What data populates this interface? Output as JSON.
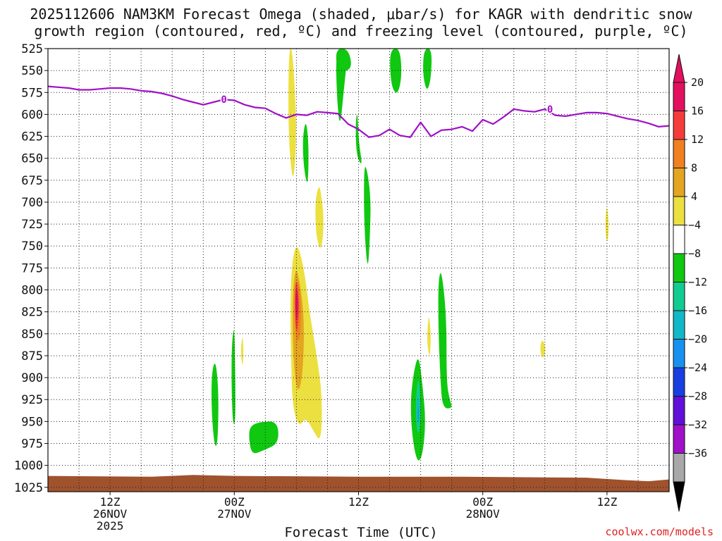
{
  "chart_data": {
    "type": "heatmap",
    "title_line1": "2025112606 NAM3KM Forecast Omega (shaded, μbar/s) for KAGR with dendritic snow",
    "title_line2": "growth region (contoured, red, ºC) and freezing level (contoured, purple, ºC)",
    "xlabel": "Forecast Time (UTC)",
    "x_ticks": [
      {
        "h": 6,
        "lines": [
          "12Z",
          "26NOV",
          "2025"
        ]
      },
      {
        "h": 18,
        "lines": [
          "00Z",
          "27NOV"
        ]
      },
      {
        "h": 30,
        "lines": [
          "12Z"
        ]
      },
      {
        "h": 42,
        "lines": [
          "00Z",
          "28NOV"
        ]
      },
      {
        "h": 54,
        "lines": [
          "12Z"
        ]
      }
    ],
    "xlim": [
      0,
      60
    ],
    "y_ticks": [
      525,
      550,
      575,
      600,
      625,
      650,
      675,
      700,
      725,
      750,
      775,
      800,
      825,
      850,
      875,
      900,
      925,
      950,
      975,
      1000,
      1025
    ],
    "ylim": [
      525,
      1030
    ],
    "grid": true,
    "colorbar": {
      "labels": [
        "20",
        "16",
        "12",
        "8",
        "4",
        "−4",
        "−8",
        "−12",
        "−16",
        "−20",
        "−24",
        "−28",
        "−32",
        "−36"
      ],
      "colors": [
        "#e2105f",
        "#f53c3c",
        "#f08020",
        "#e4a520",
        "#ece040",
        "#ffffff",
        "#10c810",
        "#10cc90",
        "#10b8c8",
        "#1890f0",
        "#1840e0",
        "#6010d8",
        "#a010c8",
        "#a8a8a8"
      ]
    },
    "freezing_level": {
      "label": "0",
      "color": "#a010c8",
      "points": [
        [
          0,
          568
        ],
        [
          1,
          569
        ],
        [
          2,
          570
        ],
        [
          3,
          572
        ],
        [
          4,
          572
        ],
        [
          5,
          571
        ],
        [
          6,
          570
        ],
        [
          7,
          570
        ],
        [
          8,
          571
        ],
        [
          9,
          573
        ],
        [
          10,
          574
        ],
        [
          11,
          576
        ],
        [
          12,
          579
        ],
        [
          13,
          583
        ],
        [
          14,
          586
        ],
        [
          15,
          589
        ],
        [
          16,
          586
        ],
        [
          17,
          583
        ],
        [
          18,
          584
        ],
        [
          19,
          589
        ],
        [
          20,
          592
        ],
        [
          21,
          593
        ],
        [
          22,
          599
        ],
        [
          23,
          604
        ],
        [
          24,
          600
        ],
        [
          25,
          601
        ],
        [
          26,
          597
        ],
        [
          27,
          598
        ],
        [
          28,
          599
        ],
        [
          29,
          611
        ],
        [
          30,
          617
        ],
        [
          31,
          626
        ],
        [
          32,
          624
        ],
        [
          33,
          617
        ],
        [
          34,
          624
        ],
        [
          35,
          626
        ],
        [
          36,
          609
        ],
        [
          37,
          625
        ],
        [
          38,
          618
        ],
        [
          39,
          617
        ],
        [
          40,
          614
        ],
        [
          41,
          619
        ],
        [
          42,
          606
        ],
        [
          43,
          611
        ],
        [
          44,
          603
        ],
        [
          45,
          594
        ],
        [
          46,
          596
        ],
        [
          47,
          597
        ],
        [
          48,
          594
        ],
        [
          49,
          601
        ],
        [
          50,
          602
        ],
        [
          51,
          600
        ],
        [
          52,
          598
        ],
        [
          53,
          598
        ],
        [
          54,
          599
        ],
        [
          55,
          602
        ],
        [
          56,
          605
        ],
        [
          57,
          607
        ],
        [
          58,
          610
        ],
        [
          59,
          614
        ],
        [
          60,
          613
        ]
      ]
    },
    "omega_features": [
      {
        "level": 4,
        "color": "#ece040",
        "pts": [
          [
            23.6,
            525
          ],
          [
            23.9,
            580
          ],
          [
            24.0,
            630
          ],
          [
            23.7,
            682
          ],
          [
            23.3,
            640
          ],
          [
            23.2,
            580
          ],
          [
            23.3,
            525
          ]
        ]
      },
      {
        "level": -4,
        "color": "#10c810",
        "pts": [
          [
            29.0,
            525
          ],
          [
            28.6,
            570
          ],
          [
            28.2,
            618
          ],
          [
            27.9,
            580
          ],
          [
            27.8,
            525
          ]
        ]
      },
      {
        "level": -4,
        "color": "#10c810",
        "pts": [
          [
            27.8,
            525
          ],
          [
            29.0,
            525
          ],
          [
            29.4,
            546
          ],
          [
            28.6,
            552
          ],
          [
            27.9,
            548
          ]
        ]
      },
      {
        "level": -4,
        "color": "#10c810",
        "pts": [
          [
            34.0,
            525
          ],
          [
            34.2,
            555
          ],
          [
            33.8,
            578
          ],
          [
            33.2,
            570
          ],
          [
            33.0,
            540
          ],
          [
            33.2,
            525
          ]
        ]
      },
      {
        "level": -4,
        "color": "#10c810",
        "pts": [
          [
            37.1,
            525
          ],
          [
            37.0,
            560
          ],
          [
            36.6,
            575
          ],
          [
            36.2,
            555
          ],
          [
            36.3,
            525
          ]
        ]
      },
      {
        "level": -4,
        "color": "#10c810",
        "pts": [
          [
            25.0,
            611
          ],
          [
            25.2,
            640
          ],
          [
            25.1,
            685
          ],
          [
            24.7,
            660
          ],
          [
            24.6,
            630
          ],
          [
            24.8,
            611
          ]
        ]
      },
      {
        "level": 4,
        "color": "#ece040",
        "pts": [
          [
            26.3,
            683
          ],
          [
            26.7,
            720
          ],
          [
            26.4,
            758
          ],
          [
            25.9,
            740
          ],
          [
            25.8,
            700
          ],
          [
            26.1,
            683
          ]
        ]
      },
      {
        "level": -4,
        "color": "#10c810",
        "pts": [
          [
            29.9,
            595
          ],
          [
            30.0,
            630
          ],
          [
            30.4,
            660
          ],
          [
            29.8,
            648
          ],
          [
            29.7,
            610
          ]
        ]
      },
      {
        "level": -4,
        "color": "#10c810",
        "pts": [
          [
            30.6,
            650
          ],
          [
            31.2,
            690
          ],
          [
            31.1,
            740
          ],
          [
            30.9,
            780
          ],
          [
            30.6,
            740
          ],
          [
            30.5,
            690
          ]
        ]
      },
      {
        "level": 4,
        "color": "#ece040",
        "pts": [
          [
            24.2,
            750
          ],
          [
            24.8,
            780
          ],
          [
            25.2,
            820
          ],
          [
            25.9,
            870
          ],
          [
            26.5,
            920
          ],
          [
            26.4,
            975
          ],
          [
            25.6,
            960
          ],
          [
            24.9,
            945
          ],
          [
            24.2,
            957
          ],
          [
            23.6,
            930
          ],
          [
            23.5,
            880
          ],
          [
            23.4,
            830
          ],
          [
            23.5,
            780
          ],
          [
            23.8,
            753
          ]
        ]
      },
      {
        "level": 8,
        "color": "#e4a520",
        "pts": [
          [
            24.1,
            775
          ],
          [
            24.8,
            830
          ],
          [
            24.6,
            900
          ],
          [
            24.1,
            920
          ],
          [
            23.7,
            880
          ],
          [
            23.6,
            820
          ],
          [
            23.8,
            782
          ]
        ]
      },
      {
        "level": 12,
        "color": "#f08020",
        "pts": [
          [
            24.1,
            780
          ],
          [
            24.5,
            820
          ],
          [
            24.3,
            860
          ],
          [
            23.9,
            855
          ],
          [
            23.8,
            815
          ]
        ]
      },
      {
        "level": 16,
        "color": "#f53c3c",
        "pts": [
          [
            24.0,
            785
          ],
          [
            24.3,
            815
          ],
          [
            24.1,
            850
          ],
          [
            23.9,
            840
          ],
          [
            23.8,
            808
          ]
        ]
      },
      {
        "level": 20,
        "color": "#e2105f",
        "pts": [
          [
            24.0,
            795
          ],
          [
            24.2,
            815
          ],
          [
            24.05,
            840
          ],
          [
            23.9,
            820
          ]
        ]
      },
      {
        "level": -4,
        "color": "#10c810",
        "pts": [
          [
            16.2,
            878
          ],
          [
            16.5,
            920
          ],
          [
            16.4,
            975
          ],
          [
            16.1,
            980
          ],
          [
            15.8,
            940
          ],
          [
            15.8,
            895
          ]
        ]
      },
      {
        "level": -4,
        "color": "#10c810",
        "pts": [
          [
            18.0,
            835
          ],
          [
            18.1,
            900
          ],
          [
            18.1,
            955
          ],
          [
            17.8,
            950
          ],
          [
            17.7,
            870
          ]
        ]
      },
      {
        "level": 4,
        "color": "#ece040",
        "pts": [
          [
            18.8,
            850
          ],
          [
            18.9,
            870
          ],
          [
            18.8,
            890
          ],
          [
            18.6,
            870
          ]
        ]
      },
      {
        "level": -4,
        "color": "#10c810",
        "pts": [
          [
            19.5,
            955
          ],
          [
            20.6,
            950
          ],
          [
            22.2,
            950
          ],
          [
            22.3,
            975
          ],
          [
            20.8,
            983
          ],
          [
            19.7,
            988
          ],
          [
            19.4,
            970
          ]
        ]
      },
      {
        "level": -4,
        "color": "#10c810",
        "pts": [
          [
            35.8,
            872
          ],
          [
            36.2,
            910
          ],
          [
            36.5,
            950
          ],
          [
            36.2,
            988
          ],
          [
            35.7,
            998
          ],
          [
            35.2,
            970
          ],
          [
            35.0,
            930
          ],
          [
            35.3,
            895
          ]
        ]
      },
      {
        "level": -8,
        "color": "#10cc90",
        "pts": [
          [
            35.8,
            895
          ],
          [
            36.0,
            930
          ],
          [
            35.9,
            965
          ],
          [
            35.6,
            960
          ],
          [
            35.5,
            925
          ]
        ]
      },
      {
        "level": -12,
        "color": "#10b8c8",
        "pts": [
          [
            35.8,
            915
          ],
          [
            35.9,
            945
          ],
          [
            35.75,
            955
          ],
          [
            35.6,
            935
          ]
        ]
      },
      {
        "level": -16,
        "color": "#1890f0",
        "pts": [
          [
            35.78,
            930
          ],
          [
            35.85,
            945
          ],
          [
            35.75,
            952
          ],
          [
            35.7,
            940
          ]
        ]
      },
      {
        "level": 4,
        "color": "#ece040",
        "pts": [
          [
            36.8,
            828
          ],
          [
            37.0,
            850
          ],
          [
            36.9,
            880
          ],
          [
            36.6,
            860
          ],
          [
            36.7,
            838
          ]
        ]
      },
      {
        "level": -4,
        "color": "#10c810",
        "pts": [
          [
            38.0,
            775
          ],
          [
            38.5,
            830
          ],
          [
            38.5,
            905
          ],
          [
            38.8,
            925
          ],
          [
            39.1,
            935
          ],
          [
            38.1,
            935
          ],
          [
            37.9,
            900
          ],
          [
            37.7,
            840
          ],
          [
            37.7,
            790
          ]
        ]
      },
      {
        "level": 4,
        "color": "#ece040",
        "pts": [
          [
            54.0,
            700
          ],
          [
            54.2,
            730
          ],
          [
            54.0,
            750
          ],
          [
            53.8,
            725
          ]
        ]
      },
      {
        "level": 4,
        "color": "#ece040",
        "pts": [
          [
            47.7,
            855
          ],
          [
            48.1,
            865
          ],
          [
            47.9,
            880
          ],
          [
            47.5,
            870
          ]
        ]
      }
    ],
    "ground_color": "#a0522d",
    "ground": [
      [
        0,
        1012
      ],
      [
        10,
        1013
      ],
      [
        14,
        1011
      ],
      [
        18,
        1012
      ],
      [
        30,
        1013
      ],
      [
        40,
        1013
      ],
      [
        52,
        1014
      ],
      [
        56,
        1017
      ],
      [
        58,
        1018
      ],
      [
        60,
        1016
      ]
    ]
  },
  "credit": "coolwx.com/models"
}
